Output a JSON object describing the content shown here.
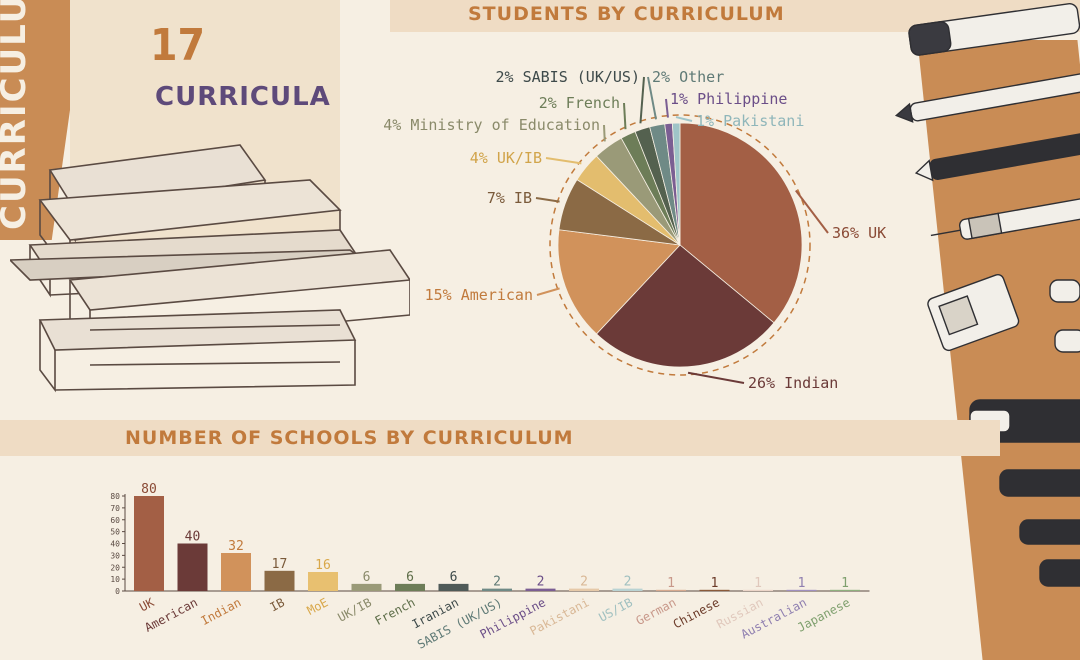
{
  "side_word": "CURRICULUM",
  "summary": {
    "count": "17",
    "label": "CURRICULA"
  },
  "chart_data": [
    {
      "type": "pie",
      "title": "STUDENTS BY CURRICULUM",
      "slices": [
        {
          "label": "36% UK",
          "name": "UK",
          "value": 36,
          "color": "#a35f45",
          "label_color": "#8a4a35"
        },
        {
          "label": "26% Indian",
          "name": "Indian",
          "value": 26,
          "color": "#6b3a38",
          "label_color": "#6b3a38"
        },
        {
          "label": "15% American",
          "name": "American",
          "value": 15,
          "color": "#d1925b",
          "label_color": "#c17a3c"
        },
        {
          "label": "7% IB",
          "name": "IB",
          "value": 7,
          "color": "#8b6a45",
          "label_color": "#7a5a3a"
        },
        {
          "label": "4% UK/IB",
          "name": "UK/IB",
          "value": 4,
          "color": "#e3bd6e",
          "label_color": "#d1a44a"
        },
        {
          "label": "4% Ministry of Education",
          "name": "Ministry of Education",
          "value": 4,
          "color": "#9a9a78",
          "label_color": "#8a8a6a"
        },
        {
          "label": "2% French",
          "name": "French",
          "value": 2,
          "color": "#6d7d58",
          "label_color": "#6d7d58"
        },
        {
          "label": "2% SABIS (UK/US)",
          "name": "SABIS (UK/US)",
          "value": 2,
          "color": "#54614f",
          "label_color": "#3e4a4a"
        },
        {
          "label": "2% Other",
          "name": "Other",
          "value": 2,
          "color": "#6f8a86",
          "label_color": "#5f7a76"
        },
        {
          "label": "1% Philippine",
          "name": "Philippine",
          "value": 1,
          "color": "#7b5e93",
          "label_color": "#6b4e88"
        },
        {
          "label": "1% Pakistani",
          "name": "Pakistani",
          "value": 1,
          "color": "#9fc4c8",
          "label_color": "#8fb6ba"
        }
      ]
    },
    {
      "type": "bar",
      "title": "NUMBER OF SCHOOLS BY CURRICULUM",
      "categories": [
        "UK",
        "American",
        "Indian",
        "IB",
        "MoE",
        "UK/IB",
        "French",
        "Iranian",
        "SABIS (UK/US)",
        "Philippine",
        "Pakistani",
        "US/IB",
        "German",
        "Chinese",
        "Russian",
        "Australian",
        "Japanese"
      ],
      "values": [
        80,
        40,
        32,
        17,
        16,
        6,
        6,
        6,
        2,
        2,
        2,
        2,
        1,
        1,
        1,
        1,
        1
      ],
      "colors": [
        "#a35f45",
        "#6b3a38",
        "#d1925b",
        "#8b6a45",
        "#e8c070",
        "#9a9a78",
        "#6d7d58",
        "#4f5a58",
        "#6f8a86",
        "#7b5e93",
        "#e6c9a8",
        "#b9d3d3",
        "#d7a98e",
        "#8a5a3a",
        "#ecd5c8",
        "#9f8fbf",
        "#8fb07e"
      ],
      "label_colors": [
        "#8a4a35",
        "#6b3a38",
        "#c17a3c",
        "#7a5a3a",
        "#d9a84a",
        "#8a8a6a",
        "#5d6d48",
        "#3e4a4a",
        "#5f7a76",
        "#6b4e88",
        "#d9b896",
        "#a0c0c0",
        "#c8988a",
        "#6b3a28",
        "#e0c8bc",
        "#8f7fb0",
        "#7fa06e"
      ],
      "yticks": [
        0,
        10,
        20,
        30,
        40,
        50,
        60,
        70,
        80
      ],
      "ylim": [
        0,
        80
      ]
    }
  ]
}
